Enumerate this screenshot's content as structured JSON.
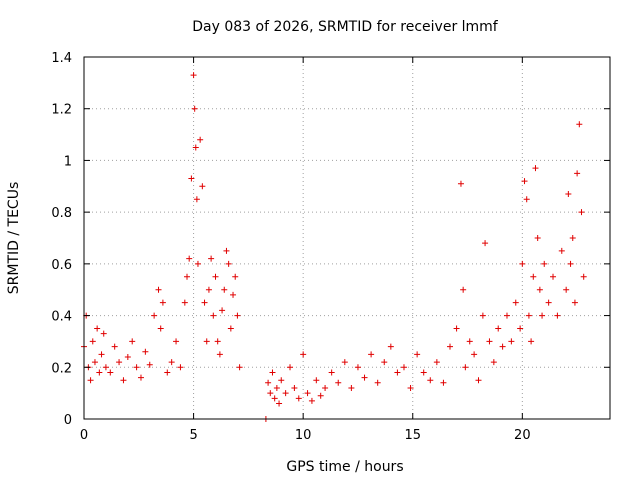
{
  "chart_data": {
    "type": "scatter",
    "title": "Day 083 of 2026, SRMTID for receiver lmmf",
    "xlabel": "GPS time / hours",
    "ylabel": "SRMTID / TECUs",
    "xlim": [
      0,
      24
    ],
    "ylim": [
      0,
      1.4
    ],
    "xticks": [
      0,
      5,
      10,
      15,
      20
    ],
    "yticks": [
      0,
      0.2,
      0.4,
      0.6,
      0.8,
      1.0,
      1.2,
      1.4
    ],
    "xtick_labels": [
      "0",
      "5",
      "10",
      "15",
      "20"
    ],
    "ytick_labels": [
      "0",
      "0.2",
      "0.4",
      "0.6",
      "0.8",
      "1",
      "1.2",
      "1.4"
    ],
    "grid": true,
    "marker": "+",
    "color": "#e00000",
    "series": [
      {
        "name": "SRMTID",
        "x": [
          0.0,
          0.1,
          0.2,
          0.3,
          0.4,
          0.5,
          0.6,
          0.7,
          0.8,
          0.9,
          1.0,
          1.2,
          1.4,
          1.6,
          1.8,
          2.0,
          2.2,
          2.4,
          2.6,
          2.8,
          3.0,
          3.2,
          3.4,
          3.5,
          3.6,
          3.8,
          4.0,
          4.2,
          4.4,
          4.6,
          4.7,
          4.8,
          4.9,
          5.0,
          5.05,
          5.1,
          5.15,
          5.2,
          5.3,
          5.4,
          5.5,
          5.6,
          5.7,
          5.8,
          5.9,
          6.0,
          6.1,
          6.2,
          6.3,
          6.4,
          6.5,
          6.6,
          6.7,
          6.8,
          6.9,
          7.0,
          7.1,
          8.3,
          8.4,
          8.5,
          8.6,
          8.7,
          8.8,
          8.9,
          9.0,
          9.2,
          9.4,
          9.6,
          9.8,
          10.0,
          10.2,
          10.4,
          10.6,
          10.8,
          11.0,
          11.3,
          11.6,
          11.9,
          12.2,
          12.5,
          12.8,
          13.1,
          13.4,
          13.7,
          14.0,
          14.3,
          14.6,
          14.9,
          15.2,
          15.5,
          15.8,
          16.1,
          16.4,
          16.7,
          17.0,
          17.2,
          17.3,
          17.4,
          17.6,
          17.8,
          18.0,
          18.2,
          18.3,
          18.5,
          18.7,
          18.9,
          19.1,
          19.3,
          19.5,
          19.7,
          19.9,
          20.0,
          20.1,
          20.2,
          20.3,
          20.4,
          20.5,
          20.6,
          20.7,
          20.8,
          20.9,
          21.0,
          21.2,
          21.4,
          21.6,
          21.8,
          22.0,
          22.1,
          22.2,
          22.3,
          22.4,
          22.5,
          22.6,
          22.7,
          22.8
        ],
        "y": [
          0.28,
          0.4,
          0.2,
          0.15,
          0.3,
          0.22,
          0.35,
          0.18,
          0.25,
          0.33,
          0.2,
          0.18,
          0.28,
          0.22,
          0.15,
          0.24,
          0.3,
          0.2,
          0.16,
          0.26,
          0.21,
          0.4,
          0.5,
          0.35,
          0.45,
          0.18,
          0.22,
          0.3,
          0.2,
          0.45,
          0.55,
          0.62,
          0.93,
          1.33,
          1.2,
          1.05,
          0.85,
          0.6,
          1.08,
          0.9,
          0.45,
          0.3,
          0.5,
          0.62,
          0.4,
          0.55,
          0.3,
          0.25,
          0.42,
          0.5,
          0.65,
          0.6,
          0.35,
          0.48,
          0.55,
          0.4,
          0.2,
          0.0,
          0.14,
          0.1,
          0.18,
          0.08,
          0.12,
          0.06,
          0.15,
          0.1,
          0.2,
          0.12,
          0.08,
          0.25,
          0.1,
          0.07,
          0.15,
          0.09,
          0.12,
          0.18,
          0.14,
          0.22,
          0.12,
          0.2,
          0.16,
          0.25,
          0.14,
          0.22,
          0.28,
          0.18,
          0.2,
          0.12,
          0.25,
          0.18,
          0.15,
          0.22,
          0.14,
          0.28,
          0.35,
          0.91,
          0.5,
          0.2,
          0.3,
          0.25,
          0.15,
          0.4,
          0.68,
          0.3,
          0.22,
          0.35,
          0.28,
          0.4,
          0.3,
          0.45,
          0.35,
          0.6,
          0.92,
          0.85,
          0.4,
          0.3,
          0.55,
          0.97,
          0.7,
          0.5,
          0.4,
          0.6,
          0.45,
          0.55,
          0.4,
          0.65,
          0.5,
          0.87,
          0.6,
          0.7,
          0.45,
          0.95,
          1.14,
          0.8,
          0.55
        ]
      }
    ]
  }
}
